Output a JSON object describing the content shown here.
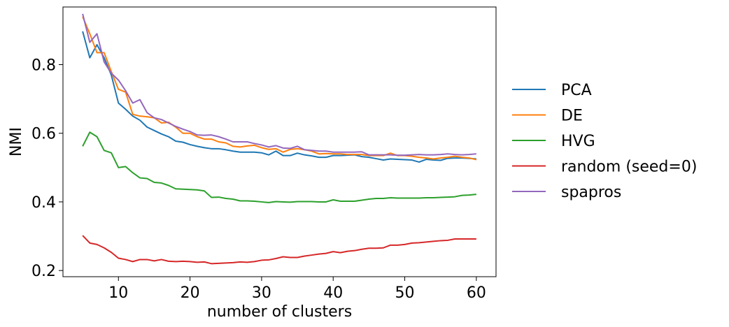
{
  "chart_data": {
    "type": "line",
    "title": "",
    "xlabel": "number of clusters",
    "ylabel": "NMI",
    "xlim": [
      2.25,
      62.75
    ],
    "ylim": [
      0.182,
      0.968
    ],
    "xticks": [
      10,
      20,
      30,
      40,
      50,
      60
    ],
    "yticks": [
      0.2,
      0.4,
      0.6,
      0.8
    ],
    "ytick_labels": [
      "0.2",
      "0.4",
      "0.6",
      "0.8"
    ],
    "grid": false,
    "legend_position": "center-right-outside",
    "x": [
      5,
      6,
      7,
      8,
      9,
      10,
      11,
      12,
      13,
      14,
      15,
      16,
      17,
      18,
      19,
      20,
      21,
      22,
      23,
      24,
      25,
      26,
      27,
      28,
      29,
      30,
      31,
      32,
      33,
      34,
      35,
      36,
      37,
      38,
      39,
      40,
      41,
      42,
      43,
      44,
      45,
      46,
      47,
      48,
      49,
      50,
      51,
      52,
      53,
      54,
      55,
      56,
      57,
      58,
      59,
      60
    ],
    "series": [
      {
        "name": "PCA",
        "color": "#1f77b4",
        "values": [
          0.897,
          0.82,
          0.858,
          0.82,
          0.77,
          0.688,
          0.67,
          0.65,
          0.638,
          0.618,
          0.608,
          0.598,
          0.59,
          0.577,
          0.574,
          0.567,
          0.562,
          0.558,
          0.555,
          0.555,
          0.552,
          0.548,
          0.545,
          0.545,
          0.545,
          0.543,
          0.537,
          0.548,
          0.535,
          0.535,
          0.542,
          0.537,
          0.534,
          0.53,
          0.53,
          0.535,
          0.535,
          0.536,
          0.537,
          0.532,
          0.53,
          0.526,
          0.522,
          0.525,
          0.524,
          0.523,
          0.522,
          0.516,
          0.524,
          0.522,
          0.521,
          0.527,
          0.528,
          0.528,
          0.527,
          0.525
        ]
      },
      {
        "name": "DE",
        "color": "#ff7f0e",
        "values": [
          0.94,
          0.89,
          0.835,
          0.835,
          0.78,
          0.728,
          0.72,
          0.655,
          0.65,
          0.648,
          0.645,
          0.63,
          0.632,
          0.618,
          0.6,
          0.6,
          0.59,
          0.583,
          0.583,
          0.575,
          0.572,
          0.562,
          0.56,
          0.563,
          0.565,
          0.558,
          0.553,
          0.555,
          0.545,
          0.553,
          0.555,
          0.552,
          0.548,
          0.54,
          0.541,
          0.54,
          0.54,
          0.538,
          0.538,
          0.538,
          0.535,
          0.535,
          0.535,
          0.542,
          0.535,
          0.535,
          0.533,
          0.53,
          0.528,
          0.525,
          0.528,
          0.53,
          0.533,
          0.53,
          0.528,
          0.523
        ]
      },
      {
        "name": "HVG",
        "color": "#2ca02c",
        "values": [
          0.562,
          0.603,
          0.59,
          0.55,
          0.543,
          0.5,
          0.503,
          0.485,
          0.47,
          0.468,
          0.457,
          0.455,
          0.448,
          0.438,
          0.437,
          0.436,
          0.435,
          0.432,
          0.413,
          0.414,
          0.41,
          0.408,
          0.403,
          0.403,
          0.402,
          0.4,
          0.398,
          0.401,
          0.4,
          0.399,
          0.401,
          0.401,
          0.401,
          0.4,
          0.4,
          0.406,
          0.402,
          0.402,
          0.402,
          0.405,
          0.408,
          0.41,
          0.41,
          0.412,
          0.411,
          0.411,
          0.411,
          0.411,
          0.412,
          0.412,
          0.413,
          0.414,
          0.415,
          0.419,
          0.42,
          0.422
        ]
      },
      {
        "name": "random (seed=0)",
        "color": "#d62728",
        "values": [
          0.302,
          0.28,
          0.276,
          0.266,
          0.253,
          0.236,
          0.232,
          0.226,
          0.232,
          0.232,
          0.228,
          0.232,
          0.227,
          0.226,
          0.227,
          0.226,
          0.224,
          0.225,
          0.22,
          0.221,
          0.222,
          0.223,
          0.225,
          0.224,
          0.226,
          0.23,
          0.231,
          0.235,
          0.24,
          0.238,
          0.238,
          0.242,
          0.245,
          0.248,
          0.25,
          0.255,
          0.252,
          0.256,
          0.258,
          0.262,
          0.265,
          0.265,
          0.266,
          0.274,
          0.274,
          0.276,
          0.28,
          0.281,
          0.283,
          0.285,
          0.287,
          0.288,
          0.292,
          0.292,
          0.292,
          0.292
        ]
      },
      {
        "name": "spapros",
        "color": "#9467bd",
        "values": [
          0.948,
          0.865,
          0.89,
          0.808,
          0.775,
          0.755,
          0.724,
          0.688,
          0.698,
          0.66,
          0.645,
          0.64,
          0.63,
          0.62,
          0.612,
          0.605,
          0.595,
          0.594,
          0.595,
          0.59,
          0.583,
          0.575,
          0.575,
          0.575,
          0.57,
          0.566,
          0.56,
          0.564,
          0.557,
          0.556,
          0.562,
          0.552,
          0.55,
          0.548,
          0.548,
          0.545,
          0.545,
          0.545,
          0.545,
          0.546,
          0.537,
          0.537,
          0.537,
          0.537,
          0.536,
          0.536,
          0.537,
          0.538,
          0.537,
          0.537,
          0.538,
          0.54,
          0.538,
          0.537,
          0.538,
          0.54
        ]
      }
    ]
  }
}
